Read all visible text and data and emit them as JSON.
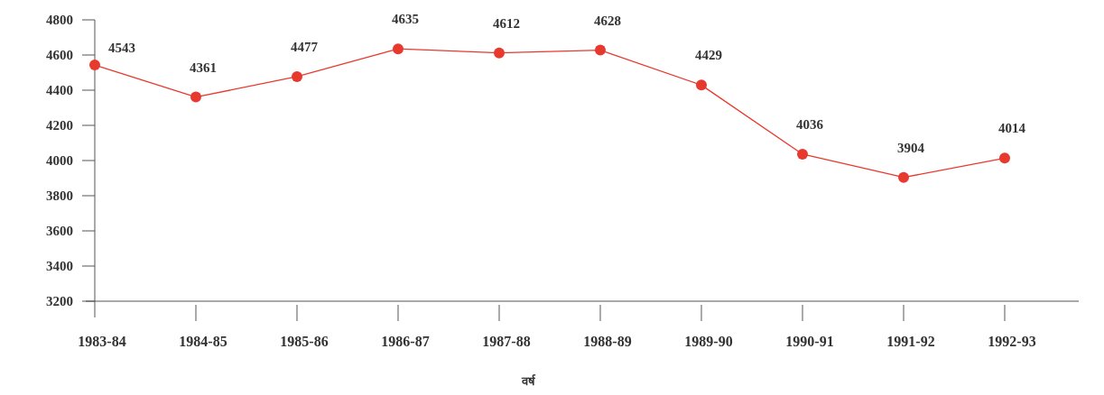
{
  "chart_data": {
    "type": "line",
    "xlabel": "वर्ष",
    "categories": [
      "1983-84",
      "1984-85",
      "1985-86",
      "1986-87",
      "1987-88",
      "1988-89",
      "1989-90",
      "1990-91",
      "1991-92",
      "1992-93"
    ],
    "values": [
      4543,
      4361,
      4477,
      4635,
      4612,
      4628,
      4429,
      4036,
      3904,
      4014
    ],
    "color": "#e8392f",
    "marker": "circle",
    "line_style": "solid",
    "data_labels": true,
    "ylim": [
      3200,
      4800
    ],
    "yticks": [
      3200,
      3400,
      3600,
      3800,
      4000,
      4200,
      4400,
      4600,
      4800
    ]
  }
}
